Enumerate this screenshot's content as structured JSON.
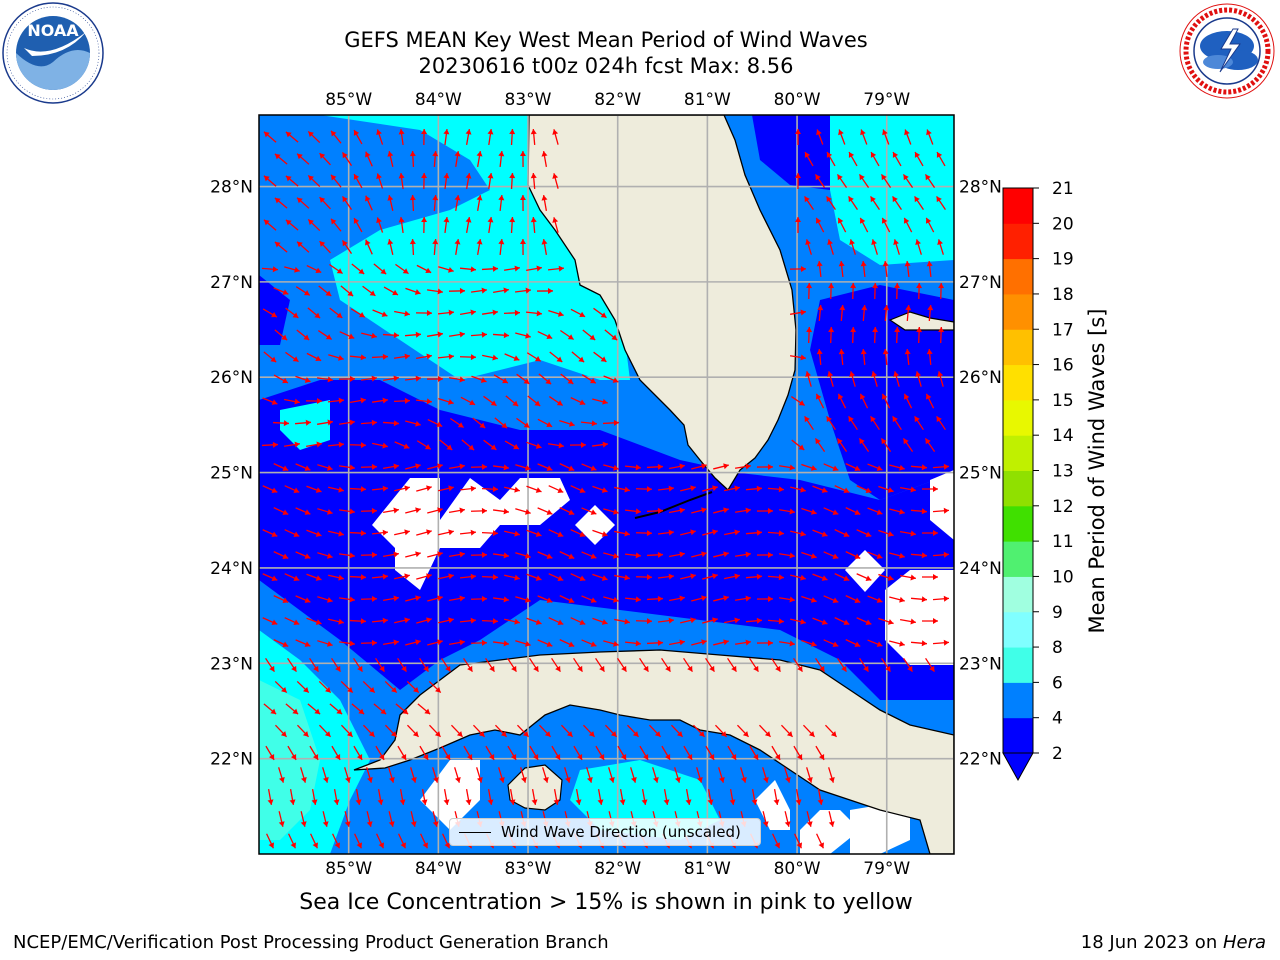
{
  "title": {
    "line1": "GEFS MEAN Key West Mean Period of Wind Waves",
    "line2": "20230616 t00z 024h fcst   Max: 8.56"
  },
  "logos": {
    "left": {
      "icon": "noaa-logo",
      "text": "NOAA",
      "ring_text": "NATIONAL OCEANIC AND ATMOSPHERIC ADMINISTRATION · U.S. DEPARTMENT OF COMMERCE"
    },
    "right": {
      "icon": "nws-logo",
      "ring_text": "NATIONAL WEATHER SERVICE"
    }
  },
  "map": {
    "lon_labels": [
      "85°W",
      "84°W",
      "83°W",
      "82°W",
      "81°W",
      "80°W",
      "79°W"
    ],
    "lat_labels": [
      "28°N",
      "27°N",
      "26°N",
      "25°N",
      "24°N",
      "23°N",
      "22°N"
    ],
    "extent": {
      "lon": [
        -86.0,
        -78.25
      ],
      "lat": [
        21.0,
        28.75
      ]
    },
    "legend_label": "Wind Wave Direction (unscaled)",
    "arrow_color": "#ff0000",
    "land_color": "#eeecdc",
    "grid_color": "#b0b0b0"
  },
  "colorbar": {
    "label": "Mean Period of Wind Waves [s]",
    "ticks": [
      "2",
      "4",
      "6",
      "8",
      "9",
      "10",
      "11",
      "12",
      "13",
      "14",
      "15",
      "16",
      "17",
      "18",
      "19",
      "20",
      "21"
    ],
    "colors": [
      "#0000ff",
      "#0080ff",
      "#00ffff",
      "#40ffe8",
      "#80ffff",
      "#a0ffe0",
      "#50f070",
      "#00e000",
      "#40e000",
      "#90e000",
      "#c0f000",
      "#e8f800",
      "#ffff00",
      "#ffe000",
      "#ffc000",
      "#ff9000",
      "#ff7000",
      "#ff4000",
      "#ff2000",
      "#ff0000"
    ],
    "extend_color": "#0000ff"
  },
  "note": "Sea Ice Concentration > 15% is shown in pink to yellow",
  "footer": {
    "left": "NCEP/EMC/Verification Post Processing Product Generation Branch",
    "right_prefix": "18 Jun 2023 on ",
    "right_host": "Hera"
  }
}
